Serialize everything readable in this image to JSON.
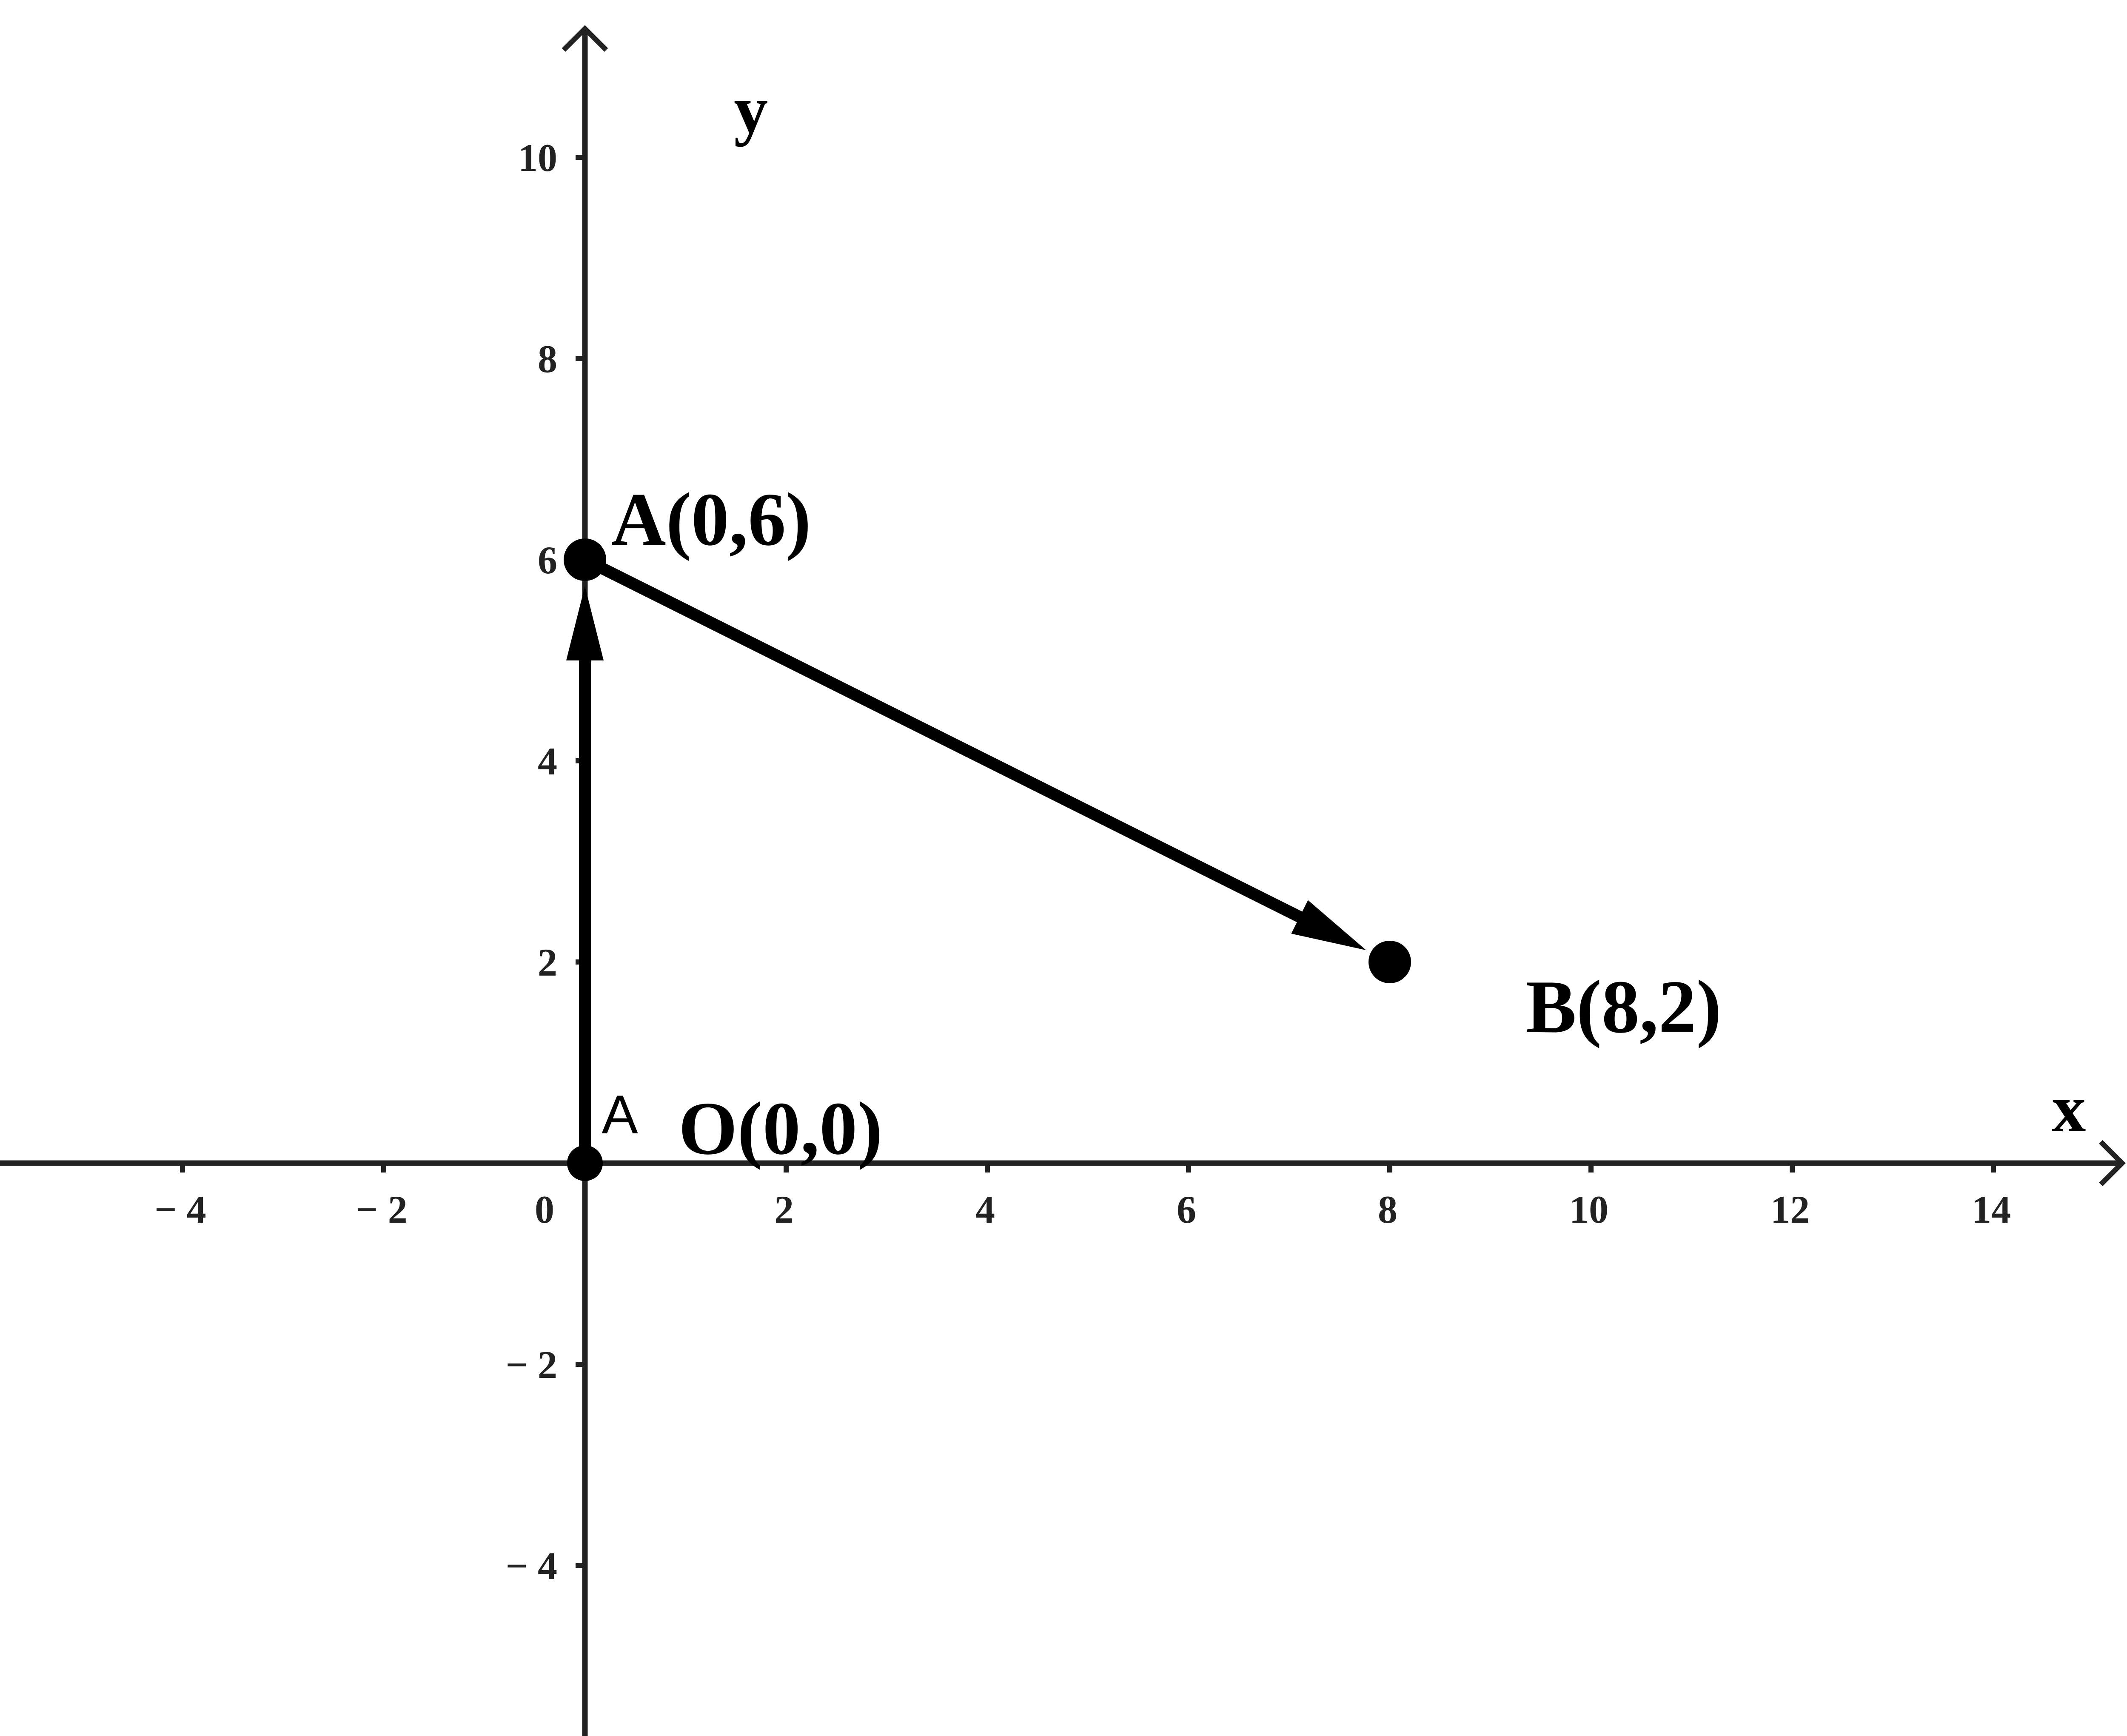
{
  "chart_data": {
    "type": "scatter",
    "title": "",
    "xlabel": "x",
    "ylabel": "y",
    "xlim": [
      -5.8,
      15.3
    ],
    "ylim": [
      -5.7,
      11.3
    ],
    "grid": false,
    "x_ticks": [
      -4,
      -2,
      2,
      4,
      6,
      8,
      10,
      12,
      14
    ],
    "y_ticks": [
      -4,
      -2,
      2,
      4,
      6,
      8,
      10
    ],
    "origin_label": "0",
    "points": [
      {
        "name": "O",
        "x": 0,
        "y": 0,
        "label": "O(0,0)"
      },
      {
        "name": "A",
        "x": 0,
        "y": 6,
        "label": "A(0,6)"
      },
      {
        "name": "B",
        "x": 8,
        "y": 2,
        "label": "B(8,2)"
      }
    ],
    "vectors": [
      {
        "from": "O",
        "to": "A",
        "label": "A"
      },
      {
        "from": "A",
        "to": "B",
        "label": ""
      }
    ],
    "colors": {
      "axis": "#222222",
      "vector": "#000000",
      "point": "#000000"
    }
  }
}
